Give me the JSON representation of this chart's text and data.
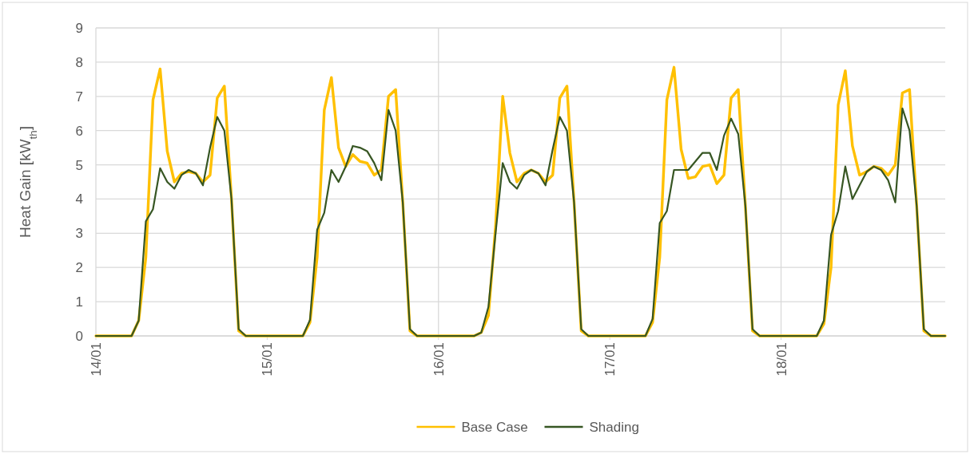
{
  "chart_data": {
    "type": "line",
    "ylabel": "Heat Gain [kW$_{th}$]",
    "categories": [
      "14/01",
      null,
      null,
      null,
      null,
      null,
      null,
      null,
      null,
      null,
      null,
      null,
      null,
      null,
      null,
      null,
      null,
      null,
      null,
      null,
      null,
      null,
      null,
      null,
      "15/01",
      null,
      null,
      null,
      null,
      null,
      null,
      null,
      null,
      null,
      null,
      null,
      null,
      null,
      null,
      null,
      null,
      null,
      null,
      null,
      null,
      null,
      null,
      null,
      "16/01",
      null,
      null,
      null,
      null,
      null,
      null,
      null,
      null,
      null,
      null,
      null,
      null,
      null,
      null,
      null,
      null,
      null,
      null,
      null,
      null,
      null,
      null,
      null,
      "17/01",
      null,
      null,
      null,
      null,
      null,
      null,
      null,
      null,
      null,
      null,
      null,
      null,
      null,
      null,
      null,
      null,
      null,
      null,
      null,
      null,
      null,
      null,
      null,
      "18/01",
      null,
      null,
      null,
      null,
      null,
      null,
      null,
      null,
      null,
      null,
      null,
      null,
      null,
      null,
      null,
      null,
      null,
      null,
      null,
      null,
      null,
      null,
      null
    ],
    "series": [
      {
        "name": "Base Case",
        "color": "#ffc000",
        "values": [
          0,
          0,
          0,
          0,
          0,
          0,
          0.45,
          2.3,
          6.9,
          7.8,
          5.4,
          4.5,
          4.75,
          4.8,
          4.75,
          4.5,
          4.7,
          6.95,
          7.3,
          4.0,
          0.15,
          0,
          0,
          0,
          0,
          0,
          0,
          0,
          0,
          0,
          0.4,
          2.3,
          6.6,
          7.55,
          5.5,
          4.95,
          5.3,
          5.1,
          5.05,
          4.7,
          4.85,
          7.0,
          7.2,
          3.9,
          0.15,
          0,
          0,
          0,
          0,
          0,
          0,
          0,
          0,
          0,
          0.1,
          0.6,
          3.2,
          7.0,
          5.35,
          4.5,
          4.75,
          4.85,
          4.75,
          4.5,
          4.7,
          6.95,
          7.3,
          3.9,
          0.15,
          0,
          0,
          0,
          0,
          0,
          0,
          0,
          0,
          0,
          0.4,
          2.3,
          6.9,
          7.85,
          5.45,
          4.6,
          4.65,
          4.95,
          5.0,
          4.45,
          4.7,
          6.95,
          7.2,
          3.8,
          0.15,
          0,
          0,
          0,
          0,
          0,
          0,
          0,
          0,
          0,
          0.35,
          2.0,
          6.75,
          7.75,
          5.55,
          4.7,
          4.8,
          4.95,
          4.9,
          4.7,
          5.0,
          7.1,
          7.2,
          3.8,
          0.15,
          0,
          0,
          0
        ]
      },
      {
        "name": "Shading",
        "color": "#375623",
        "values": [
          0,
          0,
          0,
          0,
          0,
          0,
          0.45,
          3.35,
          3.7,
          4.9,
          4.5,
          4.3,
          4.7,
          4.85,
          4.75,
          4.4,
          5.5,
          6.4,
          6.0,
          4.0,
          0.2,
          0,
          0,
          0,
          0,
          0,
          0,
          0,
          0,
          0,
          0.47,
          3.1,
          3.6,
          4.85,
          4.5,
          4.95,
          5.55,
          5.5,
          5.4,
          5.05,
          4.55,
          6.6,
          6.0,
          3.9,
          0.2,
          0,
          0,
          0,
          0,
          0,
          0,
          0,
          0,
          0,
          0.1,
          0.85,
          3.0,
          5.05,
          4.5,
          4.3,
          4.7,
          4.85,
          4.75,
          4.4,
          5.45,
          6.4,
          6.0,
          3.9,
          0.2,
          0,
          0,
          0,
          0,
          0,
          0,
          0,
          0,
          0,
          0.5,
          3.3,
          3.65,
          4.85,
          4.85,
          4.85,
          5.1,
          5.35,
          5.35,
          4.85,
          5.85,
          6.35,
          5.9,
          3.8,
          0.2,
          0,
          0,
          0,
          0,
          0,
          0,
          0,
          0,
          0,
          0.45,
          2.95,
          3.65,
          4.95,
          4.0,
          4.4,
          4.8,
          4.95,
          4.85,
          4.55,
          3.9,
          6.65,
          6.0,
          3.8,
          0.2,
          0,
          0,
          0
        ]
      }
    ],
    "ylim": [
      0,
      9
    ],
    "yticks": [
      0,
      1,
      2,
      3,
      4,
      5,
      6,
      7,
      8,
      9
    ],
    "grid": "y",
    "ref_lines": [
      {
        "axis": "x",
        "value": "16/01",
        "color": "#d9d9d9"
      },
      {
        "axis": "x",
        "value": "18/01",
        "color": "#d9d9d9"
      }
    ],
    "legend": "bottom",
    "marker": "none",
    "line_style": "solid"
  }
}
